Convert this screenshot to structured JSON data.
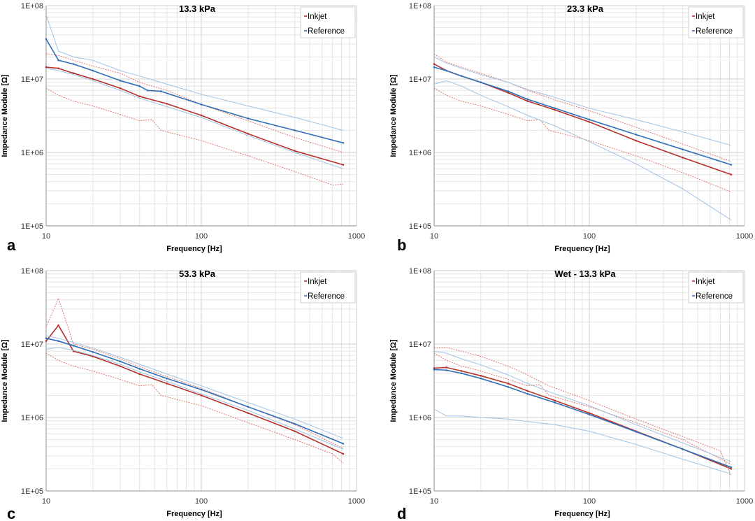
{
  "colors": {
    "inkjet": "#b5302b",
    "reference": "#2f6fb7",
    "inkjet_light": "#e07a70",
    "reference_light": "#9fc3e3",
    "grid": "#e3e3e3"
  },
  "chart_data": [
    {
      "type": "line",
      "panel": "a",
      "title": "13.3 kPa",
      "xlabel": "Frequency [Hz]",
      "ylabel": "Impedance Module [Ω]",
      "xscale": "log",
      "yscale": "log",
      "xlim": [
        10,
        1000
      ],
      "ylim": [
        100000,
        100000000
      ],
      "xticks": [
        "10",
        "100",
        "1000"
      ],
      "yticks": [
        "1E+05",
        "1E+06",
        "1E+07",
        "1E+08"
      ],
      "legend": [
        "Inkjet",
        "Reference"
      ],
      "legend_position": "top-right",
      "grid": true,
      "series": [
        {
          "name": "Inkjet",
          "role": "mean",
          "x": [
            10,
            12,
            15,
            20,
            30,
            40,
            60,
            100,
            200,
            400,
            820
          ],
          "y": [
            14500000,
            14000000,
            12000000,
            10000000,
            7500000,
            5800000,
            4600000,
            3200000,
            1800000,
            1050000,
            680000
          ]
        },
        {
          "name": "Inkjet",
          "role": "upper",
          "x": [
            10,
            12,
            15,
            20,
            30,
            40,
            60,
            100,
            200,
            400,
            820
          ],
          "y": [
            22000000,
            21000000,
            18000000,
            15000000,
            12000000,
            9000000,
            7000000,
            4500000,
            2700000,
            1600000,
            1000000
          ]
        },
        {
          "name": "Inkjet",
          "role": "lower",
          "x": [
            10,
            12,
            15,
            20,
            30,
            40,
            48,
            55,
            100,
            200,
            400,
            700,
            820
          ],
          "y": [
            7500000,
            6000000,
            5000000,
            4300000,
            3300000,
            2700000,
            2800000,
            2000000,
            1450000,
            900000,
            550000,
            360000,
            370000
          ]
        },
        {
          "name": "Reference",
          "role": "mean",
          "x": [
            10,
            12,
            15,
            20,
            30,
            40,
            45,
            55,
            100,
            200,
            400,
            820
          ],
          "y": [
            35000000,
            18000000,
            16000000,
            13000000,
            9500000,
            8000000,
            7000000,
            6800000,
            4500000,
            2900000,
            2000000,
            1350000
          ]
        },
        {
          "name": "Reference",
          "role": "upper",
          "x": [
            10,
            12,
            15,
            20,
            30,
            40,
            60,
            100,
            200,
            400,
            820
          ],
          "y": [
            75000000,
            24000000,
            20000000,
            18000000,
            13000000,
            11000000,
            8500000,
            6200000,
            4300000,
            3000000,
            2000000
          ]
        },
        {
          "name": "Reference",
          "role": "lower",
          "x": [
            10,
            12,
            15,
            20,
            30,
            40,
            60,
            100,
            200,
            400,
            820
          ],
          "y": [
            14000000,
            13000000,
            11500000,
            9500000,
            7000000,
            5500000,
            4200000,
            3000000,
            1700000,
            1000000,
            600000
          ]
        }
      ]
    },
    {
      "type": "line",
      "panel": "b",
      "title": "23.3 kPa",
      "xlabel": "Frequency [Hz]",
      "ylabel": "Impedance Module [Ω]",
      "xscale": "log",
      "yscale": "log",
      "xlim": [
        10,
        1000
      ],
      "ylim": [
        100000,
        100000000
      ],
      "xticks": [
        "10",
        "100",
        "1000"
      ],
      "yticks": [
        "1E+05",
        "1E+06",
        "1E+07",
        "1E+08"
      ],
      "legend": [
        "Inkjet",
        "Reference"
      ],
      "legend_position": "top-right",
      "grid": true,
      "series": [
        {
          "name": "Inkjet",
          "role": "mean",
          "x": [
            10,
            12,
            15,
            20,
            30,
            40,
            60,
            100,
            200,
            400,
            820
          ],
          "y": [
            16000000,
            13000000,
            11000000,
            9000000,
            6500000,
            5000000,
            3800000,
            2600000,
            1450000,
            850000,
            500000
          ]
        },
        {
          "name": "Inkjet",
          "role": "upper",
          "x": [
            10,
            12,
            15,
            20,
            30,
            40,
            60,
            100,
            200,
            400,
            820
          ],
          "y": [
            22000000,
            17000000,
            14500000,
            12000000,
            9000000,
            7000000,
            5200000,
            3700000,
            2200000,
            1300000,
            750000
          ]
        },
        {
          "name": "Inkjet",
          "role": "lower",
          "x": [
            10,
            12,
            15,
            20,
            30,
            40,
            48,
            55,
            100,
            200,
            400,
            820
          ],
          "y": [
            7500000,
            6000000,
            5000000,
            4300000,
            3300000,
            2700000,
            2800000,
            2000000,
            1450000,
            900000,
            530000,
            290000
          ]
        },
        {
          "name": "Reference",
          "role": "mean",
          "x": [
            10,
            12,
            15,
            20,
            30,
            40,
            60,
            100,
            200,
            400,
            820
          ],
          "y": [
            14500000,
            13000000,
            11000000,
            9000000,
            6800000,
            5300000,
            4000000,
            2800000,
            1750000,
            1100000,
            680000
          ]
        },
        {
          "name": "Reference",
          "role": "upper",
          "x": [
            10,
            12,
            15,
            20,
            30,
            40,
            60,
            100,
            200,
            400,
            820
          ],
          "y": [
            20000000,
            16500000,
            14000000,
            11500000,
            9000000,
            7200000,
            5600000,
            4000000,
            2800000,
            1900000,
            1250000
          ]
        },
        {
          "name": "Reference",
          "role": "lower",
          "x": [
            10,
            12,
            15,
            20,
            30,
            40,
            60,
            100,
            200,
            400,
            820
          ],
          "y": [
            8500000,
            9500000,
            8000000,
            6000000,
            4200000,
            3200000,
            2300000,
            1400000,
            700000,
            320000,
            120000
          ]
        }
      ]
    },
    {
      "type": "line",
      "panel": "c",
      "title": "53.3 kPa",
      "xlabel": "Frequency [Hz]",
      "ylabel": "Impedance Module [Ω]",
      "xscale": "log",
      "yscale": "log",
      "xlim": [
        10,
        1000
      ],
      "ylim": [
        100000,
        100000000
      ],
      "xticks": [
        "10",
        "100",
        "1000"
      ],
      "yticks": [
        "1E+05",
        "1E+06",
        "1E+07",
        "1E+08"
      ],
      "legend": [
        "Inkjet",
        "Reference"
      ],
      "legend_position": "top-right",
      "grid": true,
      "series": [
        {
          "name": "Inkjet",
          "role": "mean",
          "x": [
            10,
            12,
            15,
            20,
            30,
            40,
            60,
            100,
            200,
            400,
            820
          ],
          "y": [
            11000000,
            18000000,
            8000000,
            6800000,
            5000000,
            3900000,
            2900000,
            2000000,
            1150000,
            650000,
            320000
          ]
        },
        {
          "name": "Inkjet",
          "role": "upper",
          "x": [
            10,
            12,
            15,
            20,
            30,
            40,
            60,
            100,
            200,
            400,
            820
          ],
          "y": [
            17000000,
            42000000,
            10000000,
            8500000,
            6300000,
            4900000,
            3600000,
            2500000,
            1400000,
            800000,
            380000
          ]
        },
        {
          "name": "Inkjet",
          "role": "lower",
          "x": [
            10,
            12,
            15,
            20,
            30,
            40,
            48,
            55,
            100,
            200,
            400,
            700,
            820
          ],
          "y": [
            7500000,
            6000000,
            5000000,
            4300000,
            3300000,
            2700000,
            2800000,
            2000000,
            1450000,
            850000,
            500000,
            320000,
            240000
          ]
        },
        {
          "name": "Reference",
          "role": "mean",
          "x": [
            10,
            12,
            15,
            20,
            30,
            40,
            60,
            100,
            200,
            400,
            820
          ],
          "y": [
            12000000,
            11000000,
            9500000,
            7800000,
            5800000,
            4600000,
            3400000,
            2400000,
            1400000,
            820000,
            440000
          ]
        },
        {
          "name": "Reference",
          "role": "upper",
          "x": [
            10,
            12,
            15,
            20,
            30,
            40,
            60,
            100,
            200,
            400,
            820
          ],
          "y": [
            13000000,
            12000000,
            10500000,
            8800000,
            6600000,
            5300000,
            3900000,
            2700000,
            1600000,
            950000,
            520000
          ]
        },
        {
          "name": "Reference",
          "role": "lower",
          "x": [
            10,
            12,
            15,
            20,
            30,
            40,
            60,
            100,
            200,
            400,
            820
          ],
          "y": [
            8500000,
            9000000,
            8200000,
            7000000,
            5300000,
            4200000,
            3100000,
            2100000,
            1250000,
            700000,
            370000
          ]
        }
      ]
    },
    {
      "type": "line",
      "panel": "d",
      "title": "Wet - 13.3 kPa",
      "xlabel": "Frequency [Hz]",
      "ylabel": "Impedance Module [Ω]",
      "xscale": "log",
      "yscale": "log",
      "xlim": [
        10,
        1000
      ],
      "ylim": [
        100000,
        100000000
      ],
      "xticks": [
        "10",
        "100",
        "1000"
      ],
      "yticks": [
        "1E+05",
        "1E+06",
        "1E+07",
        "1E+08"
      ],
      "legend": [
        "Inkjet",
        "Reference"
      ],
      "legend_position": "top-right",
      "grid": true,
      "series": [
        {
          "name": "Inkjet",
          "role": "mean",
          "x": [
            10,
            12,
            15,
            20,
            30,
            40,
            60,
            100,
            200,
            400,
            820
          ],
          "y": [
            4700000,
            4800000,
            4300000,
            3700000,
            2900000,
            2300000,
            1700000,
            1150000,
            650000,
            370000,
            200000
          ]
        },
        {
          "name": "Inkjet",
          "role": "upper",
          "x": [
            10,
            12,
            15,
            20,
            30,
            40,
            48,
            55,
            100,
            200,
            400,
            700,
            820
          ],
          "y": [
            8800000,
            9000000,
            8000000,
            6800000,
            5000000,
            3800000,
            3100000,
            2700000,
            1700000,
            950000,
            550000,
            350000,
            160000
          ]
        },
        {
          "name": "Inkjet",
          "role": "lower",
          "x": [
            10,
            12,
            15,
            20,
            30,
            40,
            48,
            55,
            100,
            200,
            400,
            820
          ],
          "y": [
            7500000,
            6000000,
            5000000,
            4300000,
            3300000,
            2700000,
            2800000,
            2000000,
            1400000,
            850000,
            500000,
            230000
          ]
        },
        {
          "name": "Reference",
          "role": "mean",
          "x": [
            10,
            12,
            15,
            20,
            30,
            40,
            60,
            100,
            200,
            400,
            820
          ],
          "y": [
            4500000,
            4400000,
            4000000,
            3400000,
            2600000,
            2100000,
            1600000,
            1100000,
            640000,
            370000,
            210000
          ]
        },
        {
          "name": "Reference",
          "role": "upper",
          "x": [
            10,
            12,
            15,
            20,
            30,
            40,
            60,
            100,
            200,
            400,
            820
          ],
          "y": [
            8000000,
            7500000,
            6300000,
            5200000,
            3800000,
            2900000,
            2100000,
            1450000,
            800000,
            450000,
            250000
          ]
        },
        {
          "name": "Reference",
          "role": "lower",
          "x": [
            10,
            12,
            15,
            20,
            30,
            40,
            60,
            100,
            200,
            400,
            820
          ],
          "y": [
            1300000,
            1050000,
            1050000,
            1000000,
            950000,
            880000,
            800000,
            650000,
            430000,
            270000,
            170000
          ]
        }
      ]
    }
  ]
}
